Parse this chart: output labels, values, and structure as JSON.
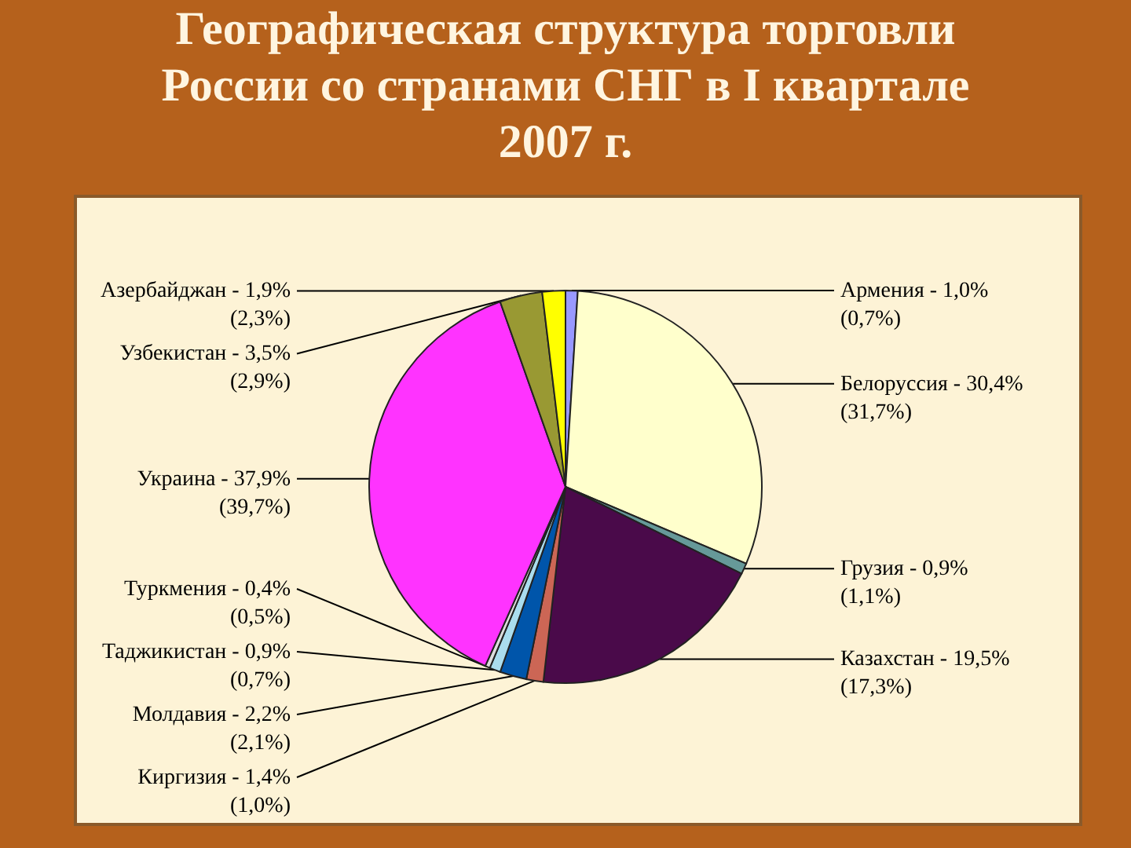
{
  "chart_data": {
    "type": "pie",
    "title": "Географическая структура торговли России со странами СНГ в I квартале 2007 г.",
    "categories": [
      "Армения",
      "Белоруссия",
      "Грузия",
      "Казахстан",
      "Киргизия",
      "Молдавия",
      "Таджикистан",
      "Туркмения",
      "Украина",
      "Узбекистан",
      "Азербайджан"
    ],
    "values": [
      1.0,
      30.4,
      0.9,
      19.5,
      1.4,
      2.2,
      0.9,
      0.4,
      37.9,
      3.5,
      1.9
    ],
    "value_labels": [
      "1,0% (0,7%)",
      "30,4% (31,7%)",
      "0,9% (1,1%)",
      "19,5% (17,3%)",
      "1,4% (1,0%)",
      "2,2% (2,1%)",
      "0,9% (0,7%)",
      "0,4% (0,5%)",
      "37,9% (39,7%)",
      "3,5% (2,9%)",
      "1,9% (2,3%)"
    ],
    "colors": [
      "#9999ff",
      "#ffffcc",
      "#669999",
      "#4a0a4a",
      "#cc6655",
      "#0055aa",
      "#aaddee",
      "#dddddd",
      "#ff33ff",
      "#999933",
      "#ffff00"
    ]
  }
}
